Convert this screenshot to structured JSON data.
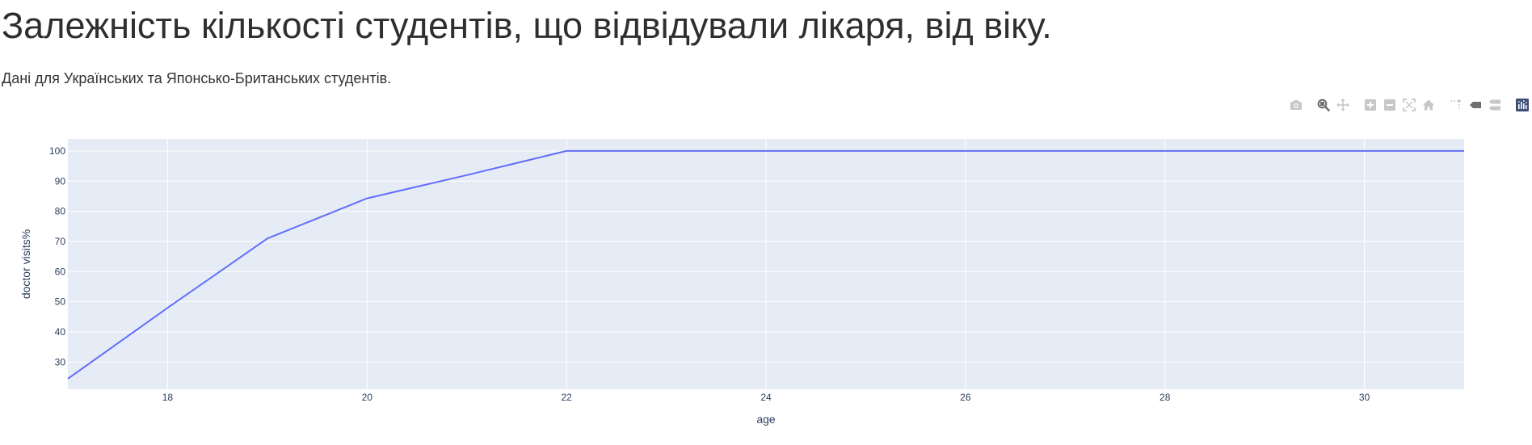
{
  "page": {
    "title": "Залежність кількості студентів, що відвідували лікаря, від віку.",
    "subtitle": "Дані для Українських та Японсько-Британських студентів."
  },
  "modebar": {
    "buttons": [
      {
        "icon": "camera-icon",
        "name": "download-plot-button"
      },
      {
        "icon": "zoom-icon",
        "name": "zoom-button",
        "active": true
      },
      {
        "icon": "pan-icon",
        "name": "pan-button"
      },
      {
        "icon": "zoom-in-icon",
        "name": "zoom-in-button"
      },
      {
        "icon": "zoom-out-icon",
        "name": "zoom-out-button"
      },
      {
        "icon": "autoscale-icon",
        "name": "autoscale-button"
      },
      {
        "icon": "home-icon",
        "name": "reset-axes-button"
      },
      {
        "icon": "spike-lines-icon",
        "name": "spike-lines-button"
      },
      {
        "icon": "hover-closest-icon",
        "name": "hover-closest-button"
      },
      {
        "icon": "hover-compare-icon",
        "name": "hover-compare-button"
      },
      {
        "icon": "plotly-logo-icon",
        "name": "plotly-logo"
      }
    ],
    "colors": {
      "inactive": "#c7c7c7",
      "active": "#6f6f6f",
      "logo": "#3f4f75"
    }
  },
  "chart_data": {
    "type": "line",
    "title": "",
    "xlabel": "age",
    "ylabel": "doctor visits%",
    "xlim": [
      17,
      31
    ],
    "ylim": [
      21,
      104
    ],
    "xticks": [
      18,
      20,
      22,
      24,
      26,
      28,
      30
    ],
    "yticks": [
      30,
      40,
      50,
      60,
      70,
      80,
      90,
      100
    ],
    "grid": true,
    "legend": "none",
    "colors": {
      "line": "#636efa",
      "plot_bg": "#e5ecf6",
      "grid": "#ffffff",
      "tick": "#2a3f5f"
    },
    "series": [
      {
        "x": [
          17,
          18,
          19,
          20,
          21,
          22,
          23,
          24,
          25,
          26,
          27,
          28,
          29,
          30,
          31
        ],
        "y": [
          24.5,
          48,
          71,
          84.3,
          92,
          100,
          100,
          100,
          100,
          100,
          100,
          100,
          100,
          100,
          100
        ]
      }
    ]
  }
}
